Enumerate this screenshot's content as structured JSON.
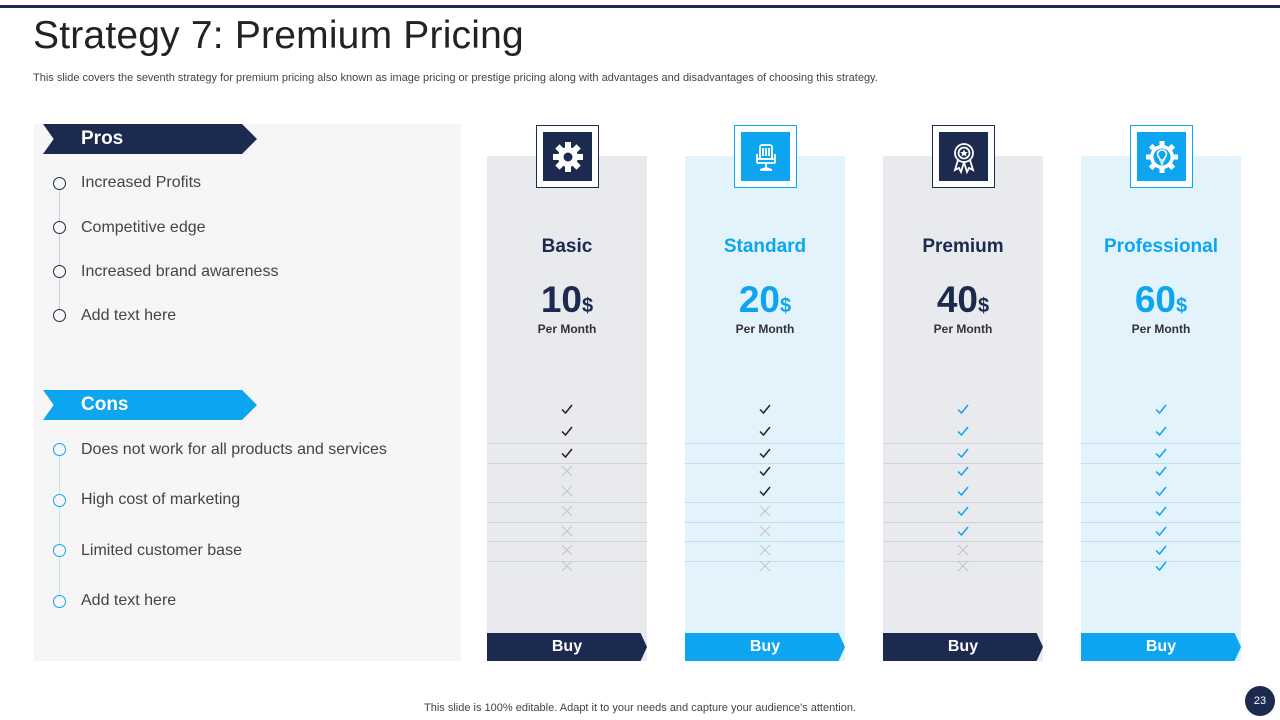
{
  "title": "Strategy 7: Premium Pricing",
  "subtitle": "This slide covers the seventh strategy for premium pricing also known as image pricing or prestige pricing along with advantages and disadvantages of choosing this strategy.",
  "pros": {
    "label": "Pros",
    "items": [
      "Increased Profits",
      "Competitive edge",
      "Increased brand awareness",
      "Add text here"
    ]
  },
  "cons": {
    "label": "Cons",
    "items": [
      "Does not work for all products and services",
      "High cost of marketing",
      "Limited customer base",
      "Add text here"
    ]
  },
  "plans": [
    {
      "name": "Basic",
      "price": "10",
      "currency": "$",
      "period": "Per Month",
      "buy": "Buy",
      "icon": "gear-icon",
      "features": [
        true,
        true,
        true,
        false,
        false,
        false,
        false,
        false,
        false
      ]
    },
    {
      "name": "Standard",
      "price": "20",
      "currency": "$",
      "period": "Per Month",
      "buy": "Buy",
      "icon": "chair-icon",
      "features": [
        true,
        true,
        true,
        true,
        true,
        false,
        false,
        false,
        false
      ]
    },
    {
      "name": "Premium",
      "price": "40",
      "currency": "$",
      "period": "Per Month",
      "buy": "Buy",
      "icon": "award-ribbon-icon",
      "features": [
        true,
        true,
        true,
        true,
        true,
        true,
        true,
        false,
        false
      ]
    },
    {
      "name": "Professional",
      "price": "60",
      "currency": "$",
      "period": "Per Month",
      "buy": "Buy",
      "icon": "lightbulb-gear-icon",
      "features": [
        true,
        true,
        true,
        true,
        true,
        true,
        true,
        true,
        true
      ]
    }
  ],
  "footer": "This slide is 100% editable. Adapt it to your needs and capture your audience's attention.",
  "page_number": "23",
  "colors": {
    "navy": "#1b2a4e",
    "blue": "#0ea5f0",
    "check_dark": "#222222",
    "check_blue": "#0ea5f0",
    "cross": "#c5c8d0"
  }
}
